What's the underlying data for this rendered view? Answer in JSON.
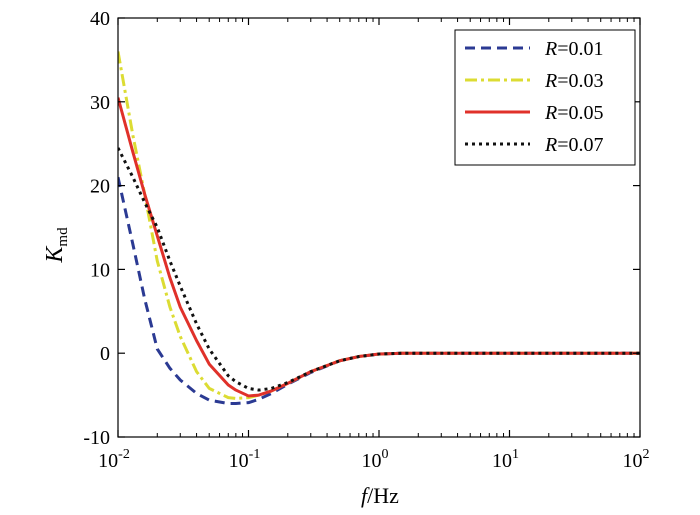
{
  "chart_data": {
    "type": "line",
    "title": "",
    "xlabel": {
      "italic": "f",
      "rest": "/Hz"
    },
    "ylabel": {
      "main": "K",
      "sub": "md"
    },
    "xscale": "log",
    "xlim": [
      0.01,
      100
    ],
    "ylim": [
      -10,
      40
    ],
    "grid": false,
    "legend_position": "top-right",
    "y_ticks": [
      {
        "value": 40,
        "label": "40"
      },
      {
        "value": 30,
        "label": "30"
      },
      {
        "value": 20,
        "label": "20"
      },
      {
        "value": 10,
        "label": "10"
      },
      {
        "value": 0,
        "label": "0"
      },
      {
        "value": -10,
        "label": "-10"
      }
    ],
    "x_ticks": [
      {
        "value": 0.01,
        "base": "10",
        "exp": "-2"
      },
      {
        "value": 0.1,
        "base": "10",
        "exp": "-1"
      },
      {
        "value": 1,
        "base": "10",
        "exp": "0"
      },
      {
        "value": 10,
        "base": "10",
        "exp": "1"
      },
      {
        "value": 100,
        "base": "10",
        "exp": "2"
      }
    ],
    "series": [
      {
        "name_var": "R",
        "name_val": "=0.01",
        "color": "#2b3a93",
        "dash": "10,6",
        "width": 3,
        "x": [
          0.01,
          0.013,
          0.016,
          0.02,
          0.025,
          0.03,
          0.04,
          0.05,
          0.07,
          0.08,
          0.1,
          0.12,
          0.15,
          0.2,
          0.3,
          0.5,
          0.7,
          1,
          1.5,
          3,
          10,
          100
        ],
        "y": [
          21,
          13,
          6.5,
          0.5,
          -1.8,
          -3.2,
          -4.8,
          -5.6,
          -6,
          -6,
          -5.9,
          -5.5,
          -4.8,
          -3.7,
          -2.3,
          -0.9,
          -0.4,
          -0.1,
          0,
          0,
          0,
          0
        ]
      },
      {
        "name_var": "R",
        "name_val": "=0.03",
        "color": "#dcdc33",
        "dash": "12,4,3,4",
        "width": 3,
        "x": [
          0.01,
          0.013,
          0.016,
          0.02,
          0.025,
          0.03,
          0.04,
          0.05,
          0.07,
          0.08,
          0.1,
          0.12,
          0.15,
          0.2,
          0.3,
          0.5,
          0.7,
          1,
          1.5,
          3,
          10,
          100
        ],
        "y": [
          36,
          26,
          19,
          11,
          5.5,
          2,
          -2.2,
          -4.2,
          -5.3,
          -5.4,
          -5.3,
          -5,
          -4.5,
          -3.6,
          -2.2,
          -0.9,
          -0.4,
          -0.1,
          0,
          0,
          0,
          0
        ]
      },
      {
        "name_var": "R",
        "name_val": "=0.05",
        "color": "#e0312a",
        "dash": "",
        "width": 3,
        "x": [
          0.01,
          0.013,
          0.016,
          0.02,
          0.025,
          0.03,
          0.04,
          0.05,
          0.07,
          0.08,
          0.1,
          0.12,
          0.15,
          0.2,
          0.3,
          0.5,
          0.7,
          1,
          1.5,
          3,
          10,
          100
        ],
        "y": [
          30.5,
          24,
          19,
          14,
          9,
          5.5,
          1.5,
          -1.3,
          -3.8,
          -4.4,
          -5.1,
          -5,
          -4.5,
          -3.6,
          -2.2,
          -0.9,
          -0.4,
          -0.1,
          0,
          0,
          0,
          0
        ]
      },
      {
        "name_var": "R",
        "name_val": "=0.07",
        "color": "#111111",
        "dash": "3,4",
        "width": 3,
        "x": [
          0.01,
          0.013,
          0.016,
          0.02,
          0.025,
          0.03,
          0.04,
          0.05,
          0.07,
          0.08,
          0.1,
          0.12,
          0.15,
          0.2,
          0.3,
          0.5,
          0.7,
          1,
          1.5,
          3,
          10,
          100
        ],
        "y": [
          24.5,
          21,
          18,
          15,
          11,
          8,
          3.5,
          0.5,
          -2.7,
          -3.4,
          -4.2,
          -4.4,
          -4.2,
          -3.5,
          -2.2,
          -0.9,
          -0.4,
          -0.1,
          0,
          0,
          0,
          0
        ]
      }
    ]
  }
}
